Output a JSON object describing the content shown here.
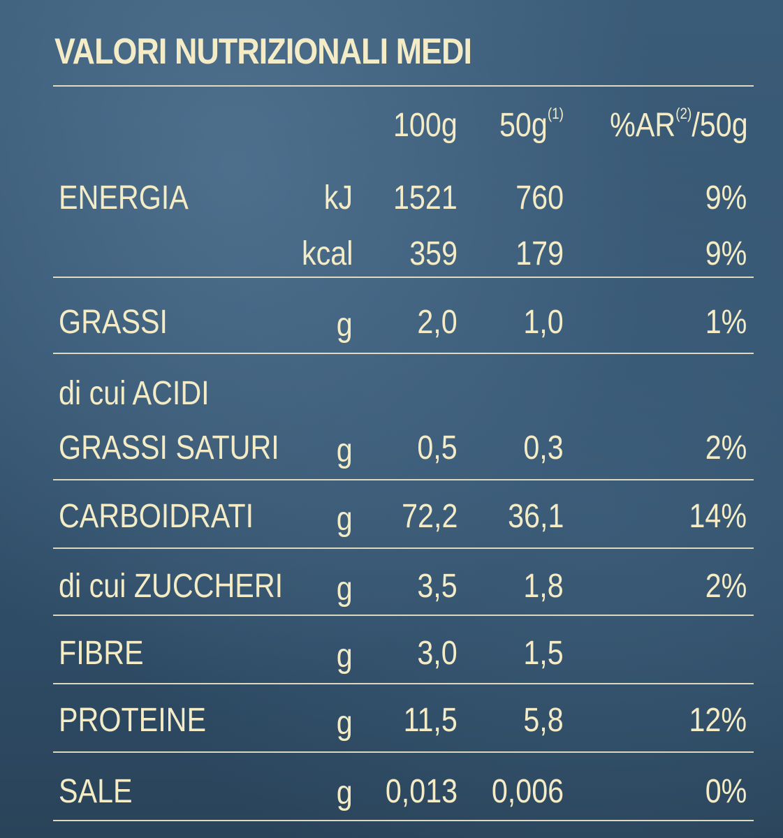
{
  "title": "VALORI NUTRIZIONALI MEDI",
  "columns": {
    "col_100g": "100g",
    "col_50g": "50g",
    "col_50g_note": "(1)",
    "col_ar": "%AR",
    "col_ar_note": "(2)",
    "col_ar_suffix": "/50g"
  },
  "rows": [
    {
      "name": "ENERGIA",
      "unit": "kJ",
      "v100": "1521",
      "v50": "760",
      "ar": "9%"
    },
    {
      "name": "",
      "unit": "kcal",
      "v100": "359",
      "v50": "179",
      "ar": "9%"
    },
    {
      "name": "GRASSI",
      "unit": "g",
      "v100": "2,0",
      "v50": "1,0",
      "ar": "1%"
    },
    {
      "name_line1": "di cui ACIDI",
      "name": "GRASSI SATURI",
      "unit": "g",
      "v100": "0,5",
      "v50": "0,3",
      "ar": "2%"
    },
    {
      "name": "CARBOIDRATI",
      "unit": "g",
      "v100": "72,2",
      "v50": "36,1",
      "ar": "14%"
    },
    {
      "name": "di cui ZUCCHERI",
      "unit": "g",
      "v100": "3,5",
      "v50": "1,8",
      "ar": "2%"
    },
    {
      "name": "FIBRE",
      "unit": "g",
      "v100": "3,0",
      "v50": "1,5",
      "ar": ""
    },
    {
      "name": "PROTEINE",
      "unit": "g",
      "v100": "11,5",
      "v50": "5,8",
      "ar": "12%"
    },
    {
      "name": "SALE",
      "unit": "g",
      "v100": "0,013",
      "v50": "0,006",
      "ar": "0%"
    }
  ],
  "colors": {
    "background": "#2f4d64",
    "text": "#f3ecc6"
  }
}
